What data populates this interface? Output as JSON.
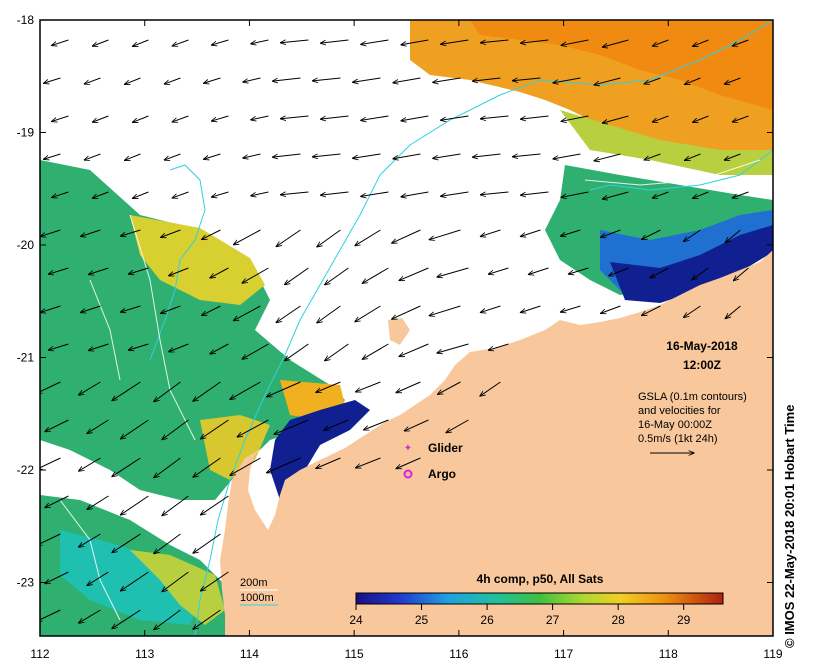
{
  "map": {
    "date": "16-May-2018",
    "time": "12:00Z",
    "x_ticks": [
      "112",
      "113",
      "114",
      "115",
      "116",
      "117",
      "118",
      "119"
    ],
    "y_ticks": [
      "-18",
      "-19",
      "-20",
      "-21",
      "-22",
      "-23"
    ],
    "description_lines": [
      "GSLA (0.1m contours)",
      "and velocities for",
      "16-May 00:00Z",
      "0.5m/s (1kt 24h)"
    ],
    "credit": "© IMOS 22-May-2018 20:01 Hobart Time"
  },
  "legend": {
    "glider": "Glider",
    "argo": "Argo",
    "glider_color": "#cc33cc",
    "argo_color": "#e020e0",
    "iso_200": "200m",
    "iso_1000": "1000m",
    "isobath_color": "#30d0e0"
  },
  "colorbar": {
    "title": "4h comp, p50, All Sats",
    "ticks": [
      "24",
      "25",
      "26",
      "27",
      "28",
      "29"
    ],
    "min": 24,
    "max": 29.6
  },
  "colors": {
    "land": "#f8c89c",
    "cold": "#102090",
    "mid": "#20b070",
    "warm": "#f0c020",
    "hot": "#f08010"
  }
}
